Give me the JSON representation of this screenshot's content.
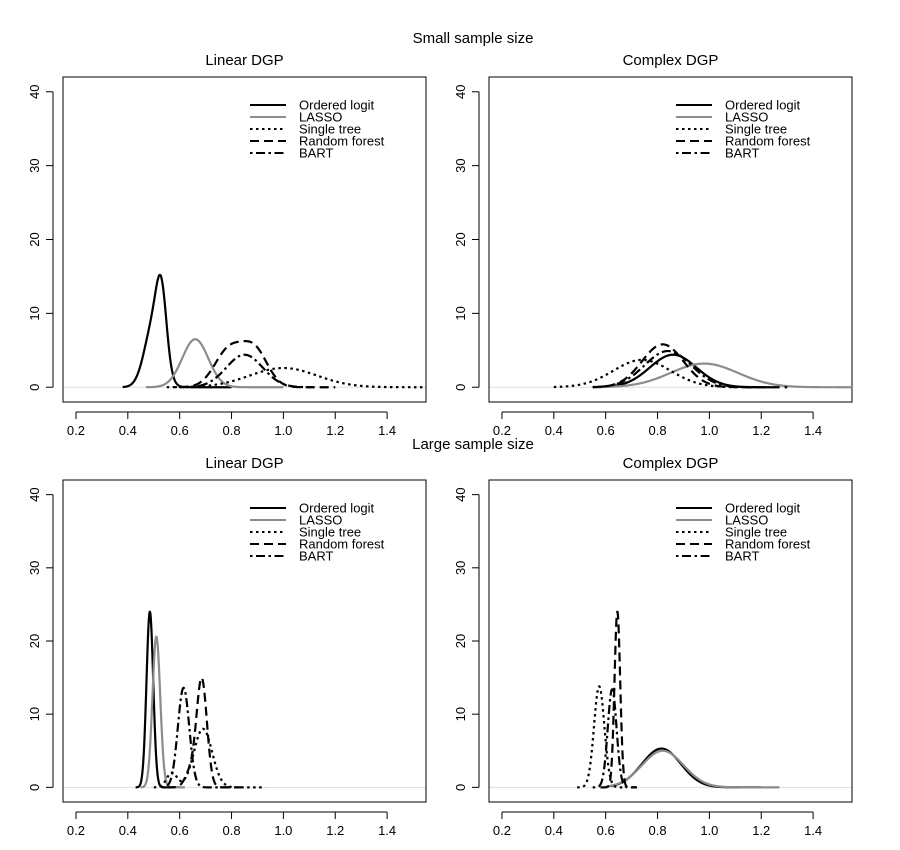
{
  "figure": {
    "row_titles": [
      "Small sample size",
      "Large sample size"
    ]
  },
  "legend_entries": [
    {
      "label": "Ordered logit",
      "color": "#000000",
      "dash": "solid"
    },
    {
      "label": "LASSO",
      "color": "#8c8c8c",
      "dash": "solid"
    },
    {
      "label": "Single tree",
      "color": "#000000",
      "dash": "dotted"
    },
    {
      "label": "Random forest",
      "color": "#000000",
      "dash": "dashed"
    },
    {
      "label": "BART",
      "color": "#000000",
      "dash": "dotdash"
    }
  ],
  "chart_data": [
    {
      "type": "line",
      "row": "Small sample size",
      "title": "Linear DGP",
      "xlabel": "",
      "ylabel": "",
      "xlim": [
        0.15,
        1.55
      ],
      "ylim": [
        -2,
        42
      ],
      "xticks": [
        "0.2",
        "0.4",
        "0.6",
        "0.8",
        "1.0",
        "1.2",
        "1.4"
      ],
      "yticks": [
        "0",
        "10",
        "20",
        "30",
        "40"
      ],
      "legend_position": "top-right",
      "series": [
        {
          "name": "Ordered logit",
          "peaks": [
            {
              "x": 0.5,
              "h": 8.6,
              "s": 0.035
            },
            {
              "x": 0.53,
              "h": 8.8,
              "s": 0.02
            }
          ],
          "range": [
            0.38,
            0.8
          ]
        },
        {
          "name": "LASSO",
          "peaks": [
            {
              "x": 0.66,
              "h": 6.5,
              "s": 0.05
            }
          ],
          "range": [
            0.47,
            1.0
          ]
        },
        {
          "name": "Single tree",
          "peaks": [
            {
              "x": 1.0,
              "h": 2.6,
              "s": 0.13
            }
          ],
          "range": [
            0.55,
            1.55
          ]
        },
        {
          "name": "Random forest",
          "peaks": [
            {
              "x": 0.79,
              "h": 5.0,
              "s": 0.055
            },
            {
              "x": 0.89,
              "h": 4.8,
              "s": 0.05
            }
          ],
          "range": [
            0.6,
            1.2
          ]
        },
        {
          "name": "BART",
          "peaks": [
            {
              "x": 0.85,
              "h": 4.4,
              "s": 0.07
            }
          ],
          "range": [
            0.58,
            1.12
          ]
        }
      ]
    },
    {
      "type": "line",
      "row": "Small sample size",
      "title": "Complex DGP",
      "xlabel": "",
      "ylabel": "",
      "xlim": [
        0.15,
        1.55
      ],
      "ylim": [
        -2,
        42
      ],
      "xticks": [
        "0.2",
        "0.4",
        "0.6",
        "0.8",
        "1.0",
        "1.2",
        "1.4"
      ],
      "yticks": [
        "0",
        "10",
        "20",
        "30",
        "40"
      ],
      "legend_position": "top-right",
      "series": [
        {
          "name": "Ordered logit",
          "peaks": [
            {
              "x": 0.86,
              "h": 4.4,
              "s": 0.09
            }
          ],
          "range": [
            0.55,
            1.2
          ]
        },
        {
          "name": "LASSO",
          "peaks": [
            {
              "x": 0.98,
              "h": 3.2,
              "s": 0.13
            }
          ],
          "range": [
            0.55,
            1.55
          ]
        },
        {
          "name": "Single tree",
          "peaks": [
            {
              "x": 0.74,
              "h": 3.7,
              "s": 0.11
            }
          ],
          "range": [
            0.4,
            1.2
          ]
        },
        {
          "name": "Random forest",
          "peaks": [
            {
              "x": 0.82,
              "h": 5.8,
              "s": 0.08
            }
          ],
          "range": [
            0.55,
            1.3
          ]
        },
        {
          "name": "BART",
          "peaks": [
            {
              "x": 0.84,
              "h": 4.9,
              "s": 0.09
            }
          ],
          "range": [
            0.55,
            1.25
          ]
        }
      ]
    },
    {
      "type": "line",
      "row": "Large sample size",
      "title": "Linear DGP",
      "xlabel": "",
      "ylabel": "",
      "xlim": [
        0.15,
        1.55
      ],
      "ylim": [
        -2,
        42
      ],
      "xticks": [
        "0.2",
        "0.4",
        "0.6",
        "0.8",
        "1.0",
        "1.2",
        "1.4"
      ],
      "yticks": [
        "0",
        "10",
        "20",
        "30",
        "40"
      ],
      "legend_position": "top-right",
      "series": [
        {
          "name": "Ordered logit",
          "peaks": [
            {
              "x": 0.485,
              "h": 24.0,
              "s": 0.013
            }
          ],
          "range": [
            0.43,
            0.6
          ]
        },
        {
          "name": "LASSO",
          "peaks": [
            {
              "x": 0.51,
              "h": 20.6,
              "s": 0.015
            }
          ],
          "range": [
            0.45,
            0.62
          ]
        },
        {
          "name": "Single tree",
          "peaks": [
            {
              "x": 0.69,
              "h": 8.0,
              "s": 0.035
            },
            {
              "x": 0.57,
              "h": 2.0,
              "s": 0.02
            }
          ],
          "range": [
            0.5,
            0.93
          ]
        },
        {
          "name": "Random forest",
          "peaks": [
            {
              "x": 0.685,
              "h": 14.8,
              "s": 0.02
            },
            {
              "x": 0.64,
              "h": 2.0,
              "s": 0.02
            }
          ],
          "range": [
            0.55,
            0.85
          ]
        },
        {
          "name": "BART",
          "peaks": [
            {
              "x": 0.615,
              "h": 13.6,
              "s": 0.022
            }
          ],
          "range": [
            0.53,
            0.8
          ]
        }
      ]
    },
    {
      "type": "line",
      "row": "Large sample size",
      "title": "Complex DGP",
      "xlabel": "",
      "ylabel": "",
      "xlim": [
        0.15,
        1.55
      ],
      "ylim": [
        -2,
        42
      ],
      "xticks": [
        "0.2",
        "0.4",
        "0.6",
        "0.8",
        "1.0",
        "1.2",
        "1.4"
      ],
      "yticks": [
        "0",
        "10",
        "20",
        "30",
        "40"
      ],
      "legend_position": "top-right",
      "series": [
        {
          "name": "Ordered logit",
          "peaks": [
            {
              "x": 0.815,
              "h": 5.3,
              "s": 0.075
            }
          ],
          "range": [
            0.62,
            1.2
          ]
        },
        {
          "name": "LASSO",
          "peaks": [
            {
              "x": 0.82,
              "h": 5.0,
              "s": 0.08
            }
          ],
          "range": [
            0.6,
            1.27
          ]
        },
        {
          "name": "Single tree",
          "peaks": [
            {
              "x": 0.575,
              "h": 13.8,
              "s": 0.02
            }
          ],
          "range": [
            0.49,
            0.68
          ]
        },
        {
          "name": "Random forest",
          "peaks": [
            {
              "x": 0.645,
              "h": 24.0,
              "s": 0.011
            }
          ],
          "range": [
            0.58,
            0.72
          ]
        },
        {
          "name": "BART",
          "peaks": [
            {
              "x": 0.625,
              "h": 13.4,
              "s": 0.017
            }
          ],
          "range": [
            0.55,
            0.72
          ]
        }
      ]
    }
  ]
}
